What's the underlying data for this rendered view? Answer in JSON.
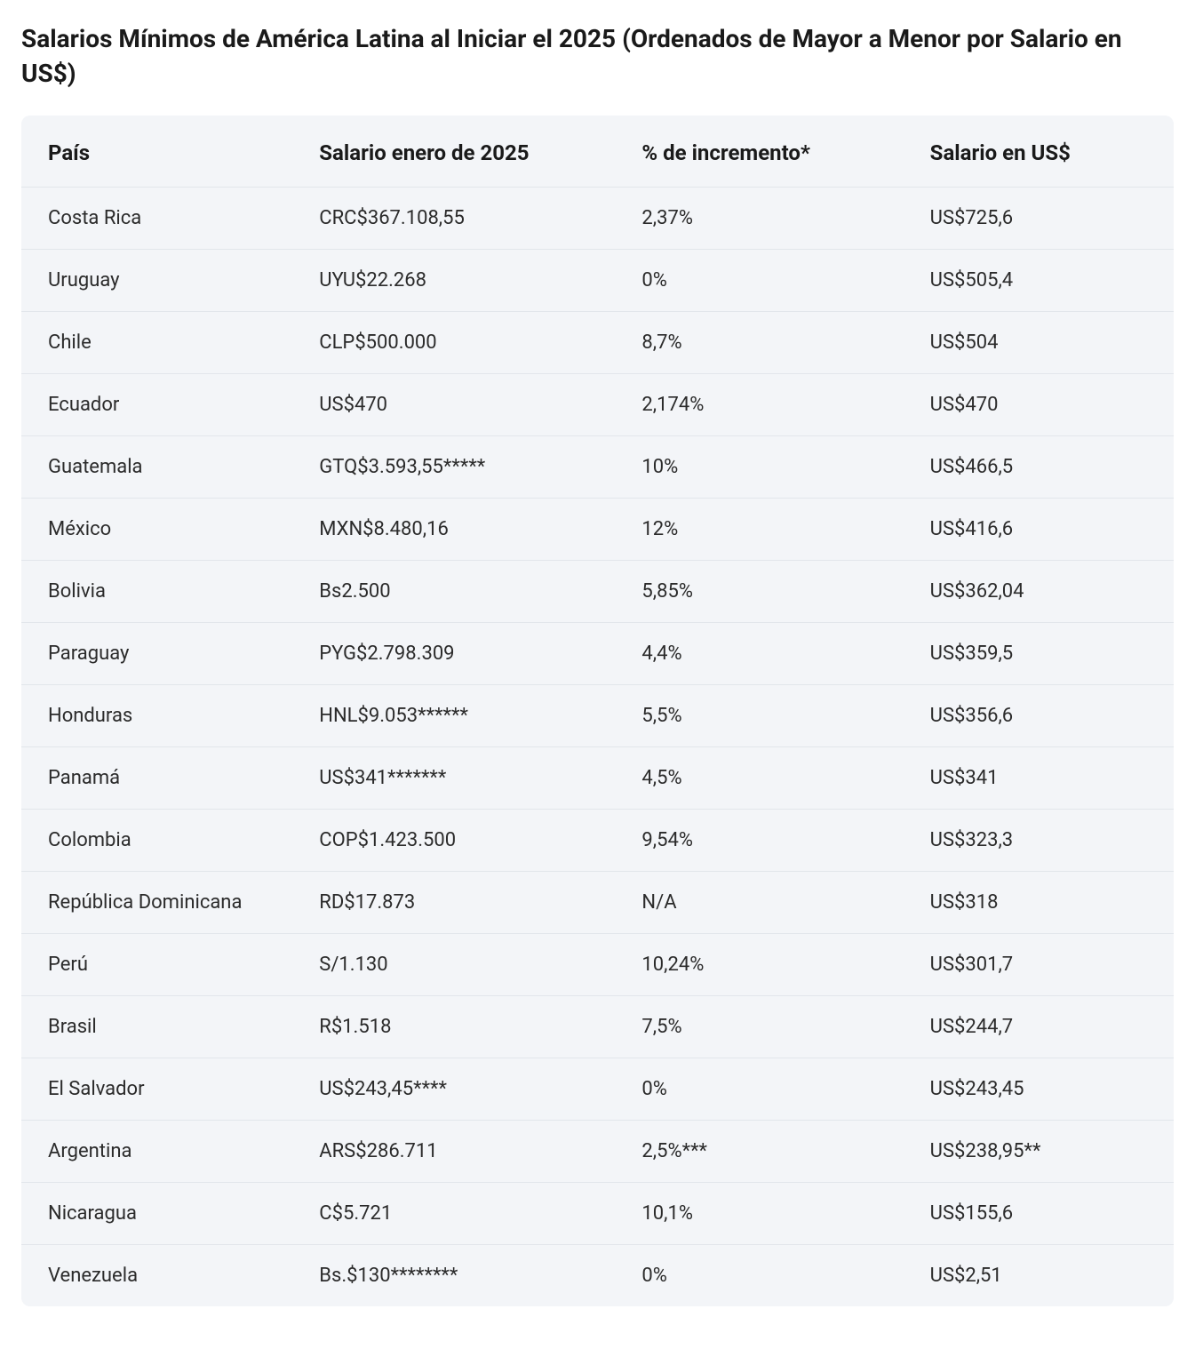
{
  "title": "Salarios Mínimos de América Latina al Iniciar el 2025 (Ordenados de Mayor a Menor por Salario en US$)",
  "table": {
    "type": "table",
    "background_color": "#f3f5f8",
    "header_bg_color": "#f3f5f8",
    "border_color": "#e2e6eb",
    "text_color": "#2b2b2b",
    "header_text_color": "#1a1a1a",
    "header_fontsize": 24,
    "body_fontsize": 22,
    "header_fontweight": 700,
    "body_fontweight": 400,
    "border_radius": 10,
    "columns": [
      {
        "label": "País",
        "width_pct": 24,
        "align": "left"
      },
      {
        "label": "Salario enero de 2025",
        "width_pct": 28,
        "align": "left"
      },
      {
        "label": "% de incremento*",
        "width_pct": 25,
        "align": "left"
      },
      {
        "label": "Salario en US$",
        "width_pct": 23,
        "align": "left"
      }
    ],
    "rows": [
      {
        "pais": "Costa Rica",
        "salario": "CRC$367.108,55",
        "incremento": "2,37%",
        "usd": "US$725,6"
      },
      {
        "pais": "Uruguay",
        "salario": "UYU$22.268",
        "incremento": "0%",
        "usd": "US$505,4"
      },
      {
        "pais": "Chile",
        "salario": "CLP$500.000",
        "incremento": "8,7%",
        "usd": "US$504"
      },
      {
        "pais": "Ecuador",
        "salario": "US$470",
        "incremento": "2,174%",
        "usd": "US$470"
      },
      {
        "pais": "Guatemala",
        "salario": "GTQ$3.593,55*****",
        "incremento": "10%",
        "usd": "US$466,5"
      },
      {
        "pais": "México",
        "salario": "MXN$8.480,16",
        "incremento": "12%",
        "usd": "US$416,6"
      },
      {
        "pais": "Bolivia",
        "salario": "Bs2.500",
        "incremento": "5,85%",
        "usd": "US$362,04"
      },
      {
        "pais": "Paraguay",
        "salario": "PYG$2.798.309",
        "incremento": "4,4%",
        "usd": "US$359,5"
      },
      {
        "pais": "Honduras",
        "salario": "HNL$9.053******",
        "incremento": "5,5%",
        "usd": "US$356,6"
      },
      {
        "pais": "Panamá",
        "salario": "US$341*******",
        "incremento": "4,5%",
        "usd": "US$341"
      },
      {
        "pais": "Colombia",
        "salario": "COP$1.423.500",
        "incremento": "9,54%",
        "usd": "US$323,3"
      },
      {
        "pais": "República Dominicana",
        "salario": "RD$17.873",
        "incremento": "N/A",
        "usd": "US$318"
      },
      {
        "pais": "Perú",
        "salario": "S/1.130",
        "incremento": "10,24%",
        "usd": "US$301,7"
      },
      {
        "pais": "Brasil",
        "salario": "R$1.518",
        "incremento": "7,5%",
        "usd": "US$244,7"
      },
      {
        "pais": "El Salvador",
        "salario": "US$243,45****",
        "incremento": "0%",
        "usd": "US$243,45"
      },
      {
        "pais": "Argentina",
        "salario": "ARS$286.711",
        "incremento": "2,5%***",
        "usd": "US$238,95**"
      },
      {
        "pais": "Nicaragua",
        "salario": "C$5.721",
        "incremento": "10,1%",
        "usd": "US$155,6"
      },
      {
        "pais": "Venezuela",
        "salario": "Bs.$130********",
        "incremento": "0%",
        "usd": "US$2,51"
      }
    ]
  }
}
